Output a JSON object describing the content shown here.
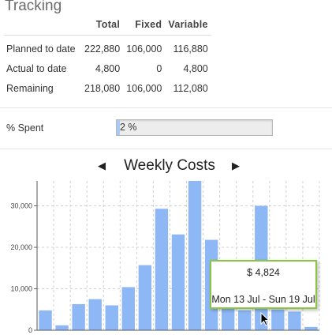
{
  "tracking": {
    "title": "Tracking",
    "columns": [
      "Total",
      "Fixed",
      "Variable"
    ],
    "rows": [
      {
        "label": "Planned to date",
        "total": "222,880",
        "fixed": "106,000",
        "variable": "116,880"
      },
      {
        "label": "Actual to date",
        "total": "4,800",
        "fixed": "0",
        "variable": "4,800"
      },
      {
        "label": "Remaining",
        "total": "218,080",
        "fixed": "106,000",
        "variable": "112,080"
      }
    ]
  },
  "spent": {
    "label": "% Spent",
    "value_text": "2 %",
    "fraction": 0.02
  },
  "weekly": {
    "title": "Weekly Costs",
    "prev_icon": "triangle-left-icon",
    "next_icon": "triangle-right-icon"
  },
  "tooltip": {
    "amount": "$ 4,824",
    "range": "Mon 13 Jul - Sun 19 Jul"
  },
  "colors": {
    "bar": "#8db8f5",
    "tooltip_border": "#8cc63f",
    "progress_fill": "#a7c9f3"
  },
  "chart_data": {
    "type": "bar",
    "title": "Weekly Costs",
    "xlabel": "",
    "ylabel": "",
    "ylim": [
      0,
      36000
    ],
    "yticks": [
      0,
      10000,
      20000,
      30000
    ],
    "ytick_labels": [
      "0",
      "10,000",
      "20,000",
      "30,000"
    ],
    "values": [
      4800,
      1200,
      6300,
      7500,
      6000,
      10400,
      15700,
      29300,
      23100,
      36000,
      21800,
      9500,
      4824,
      30000,
      5000,
      4500,
      800
    ],
    "grid": true
  }
}
